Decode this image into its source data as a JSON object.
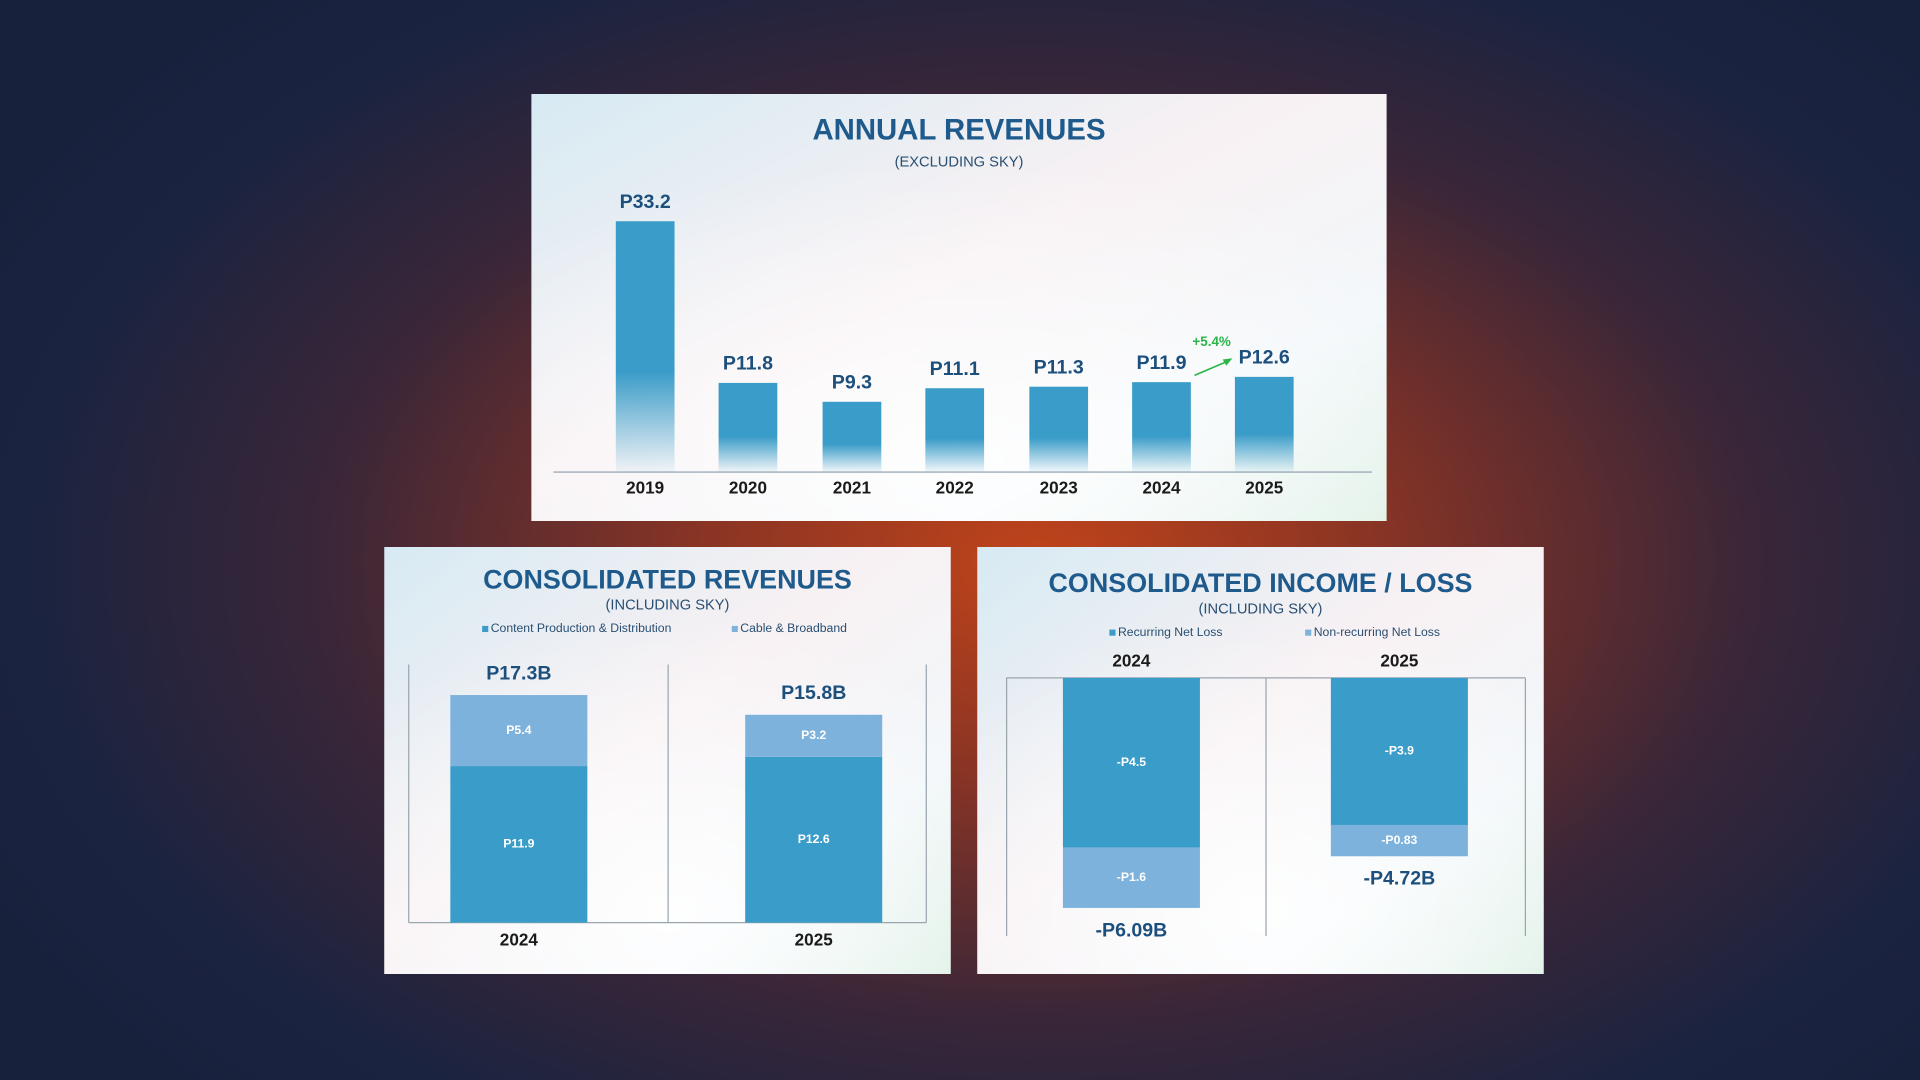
{
  "chart_data": [
    {
      "type": "bar",
      "title": "ANNUAL REVENUES",
      "subtitle": "(EXCLUDING SKY)",
      "categories": [
        "2019",
        "2020",
        "2021",
        "2022",
        "2023",
        "2024",
        "2025"
      ],
      "values": [
        33.2,
        11.8,
        9.3,
        11.1,
        11.3,
        11.9,
        12.6
      ],
      "value_labels": [
        "P33.2",
        "P11.8",
        "P9.3",
        "P11.1",
        "P11.3",
        "P11.9",
        "P12.6"
      ],
      "color": "#3a9cc8",
      "annotation": "+5.4%",
      "annotation_color": "#2db54a"
    },
    {
      "type": "stacked_bar",
      "title": "CONSOLIDATED REVENUES",
      "subtitle": "(INCLUDING SKY)",
      "categories": [
        "2024",
        "2025"
      ],
      "category_axis": "bottom",
      "series": [
        {
          "name": "Content Production & Distribution",
          "color": "#3a9cc8",
          "values": [
            11.9,
            12.6
          ],
          "value_labels": [
            "P11.9",
            "P12.6"
          ]
        },
        {
          "name": "Cable & Broadband",
          "color": "#7db2dc",
          "values": [
            5.4,
            3.2
          ],
          "value_labels": [
            "P5.4",
            "P3.2"
          ]
        }
      ],
      "totals": [
        17.3,
        15.8
      ],
      "total_labels": [
        "P17.3B",
        "P15.8B"
      ]
    },
    {
      "type": "stacked_bar",
      "title": "CONSOLIDATED INCOME / LOSS",
      "subtitle": "(INCLUDING SKY)",
      "categories": [
        "2024",
        "2025"
      ],
      "category_axis": "top",
      "series": [
        {
          "name": "Recurring Net Loss",
          "color": "#3a9cc8",
          "values": [
            -4.5,
            -3.9
          ],
          "value_labels": [
            "-P4.5",
            "-P3.9"
          ]
        },
        {
          "name": "Non-recurring Net Loss",
          "color": "#7db2dc",
          "values": [
            -1.6,
            -0.83
          ],
          "value_labels": [
            "-P1.6",
            "-P0.83"
          ]
        }
      ],
      "totals": [
        -6.09,
        -4.72
      ],
      "total_labels": [
        "-P6.09B",
        "-P4.72B"
      ]
    }
  ]
}
